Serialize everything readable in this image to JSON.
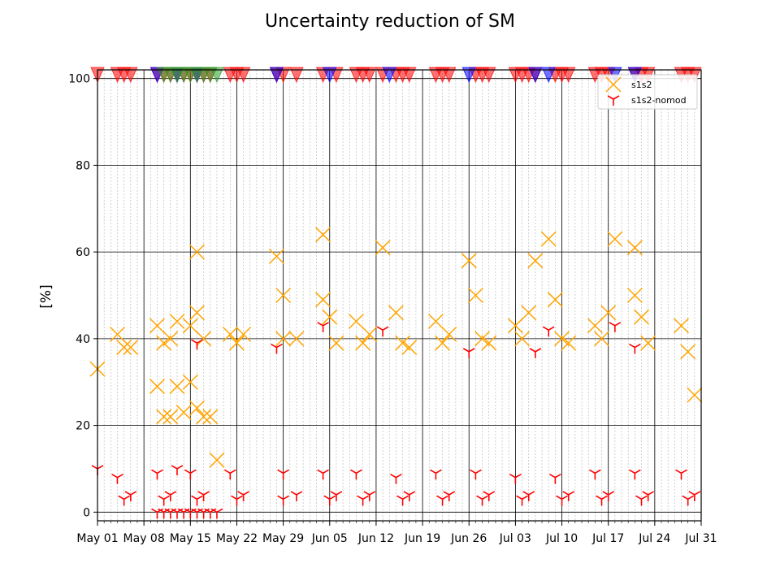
{
  "chart_data": {
    "type": "scatter",
    "title": "Uncertainty reduction of SM",
    "ylabel": "[%]",
    "xlabel": "",
    "x_range": [
      "2017-05-01",
      "2017-07-31"
    ],
    "ylim": [
      -2,
      102
    ],
    "yticks": [
      0,
      20,
      40,
      60,
      80,
      100
    ],
    "xticks": [
      {
        "date": "2017-05-01",
        "label": "May 01"
      },
      {
        "date": "2017-05-08",
        "label": "May 08"
      },
      {
        "date": "2017-05-15",
        "label": "May 15"
      },
      {
        "date": "2017-05-22",
        "label": "May 22"
      },
      {
        "date": "2017-05-29",
        "label": "May 29"
      },
      {
        "date": "2017-06-05",
        "label": "Jun 05"
      },
      {
        "date": "2017-06-12",
        "label": "Jun 12"
      },
      {
        "date": "2017-06-19",
        "label": "Jun 19"
      },
      {
        "date": "2017-06-26",
        "label": "Jun 26"
      },
      {
        "date": "2017-07-03",
        "label": "Jul 03"
      },
      {
        "date": "2017-07-10",
        "label": "Jul 10"
      },
      {
        "date": "2017-07-17",
        "label": "Jul 17"
      },
      {
        "date": "2017-07-24",
        "label": "Jul 24"
      },
      {
        "date": "2017-07-31",
        "label": "Jul 31"
      }
    ],
    "grid": true,
    "minor_grid": "daily, dashed",
    "legend_position": "top-right",
    "series": [
      {
        "name": "s1s2",
        "marker": "x",
        "color": "#ffa500",
        "points": [
          [
            "2017-05-01",
            33
          ],
          [
            "2017-05-04",
            41
          ],
          [
            "2017-05-05",
            38
          ],
          [
            "2017-05-06",
            38
          ],
          [
            "2017-05-10",
            43
          ],
          [
            "2017-05-10",
            29
          ],
          [
            "2017-05-11",
            22
          ],
          [
            "2017-05-11",
            39
          ],
          [
            "2017-05-12",
            22
          ],
          [
            "2017-05-12",
            40
          ],
          [
            "2017-05-13",
            29
          ],
          [
            "2017-05-13",
            44
          ],
          [
            "2017-05-14",
            23
          ],
          [
            "2017-05-15",
            43
          ],
          [
            "2017-05-15",
            30
          ],
          [
            "2017-05-16",
            60
          ],
          [
            "2017-05-16",
            46
          ],
          [
            "2017-05-16",
            24
          ],
          [
            "2017-05-17",
            22
          ],
          [
            "2017-05-17",
            40
          ],
          [
            "2017-05-18",
            22
          ],
          [
            "2017-05-19",
            12
          ],
          [
            "2017-05-21",
            41
          ],
          [
            "2017-05-22",
            39
          ],
          [
            "2017-05-23",
            41
          ],
          [
            "2017-05-28",
            59
          ],
          [
            "2017-05-29",
            50
          ],
          [
            "2017-05-29",
            40
          ],
          [
            "2017-05-31",
            40
          ],
          [
            "2017-06-04",
            64
          ],
          [
            "2017-06-04",
            49
          ],
          [
            "2017-06-05",
            45
          ],
          [
            "2017-06-06",
            39
          ],
          [
            "2017-06-09",
            44
          ],
          [
            "2017-06-10",
            39
          ],
          [
            "2017-06-11",
            41
          ],
          [
            "2017-06-13",
            61
          ],
          [
            "2017-06-15",
            46
          ],
          [
            "2017-06-16",
            39
          ],
          [
            "2017-06-17",
            38
          ],
          [
            "2017-06-21",
            44
          ],
          [
            "2017-06-22",
            39
          ],
          [
            "2017-06-23",
            41
          ],
          [
            "2017-06-26",
            58
          ],
          [
            "2017-06-27",
            50
          ],
          [
            "2017-06-28",
            40
          ],
          [
            "2017-06-29",
            39
          ],
          [
            "2017-07-03",
            43
          ],
          [
            "2017-07-04",
            40
          ],
          [
            "2017-07-05",
            46
          ],
          [
            "2017-07-06",
            58
          ],
          [
            "2017-07-08",
            63
          ],
          [
            "2017-07-09",
            49
          ],
          [
            "2017-07-10",
            40
          ],
          [
            "2017-07-11",
            39
          ],
          [
            "2017-07-15",
            43
          ],
          [
            "2017-07-16",
            40
          ],
          [
            "2017-07-17",
            46
          ],
          [
            "2017-07-18",
            63
          ],
          [
            "2017-07-21",
            61
          ],
          [
            "2017-07-21",
            50
          ],
          [
            "2017-07-22",
            45
          ],
          [
            "2017-07-23",
            39
          ],
          [
            "2017-07-28",
            43
          ],
          [
            "2017-07-29",
            37
          ],
          [
            "2017-07-30",
            27
          ]
        ]
      },
      {
        "name": "s1s2-nomod",
        "marker": "tri_down",
        "color": "#ff0000",
        "points": [
          [
            "2017-05-01",
            10
          ],
          [
            "2017-05-04",
            8
          ],
          [
            "2017-05-05",
            3
          ],
          [
            "2017-05-06",
            4
          ],
          [
            "2017-05-10",
            9
          ],
          [
            "2017-05-10",
            0
          ],
          [
            "2017-05-11",
            3
          ],
          [
            "2017-05-11",
            0
          ],
          [
            "2017-05-12",
            4
          ],
          [
            "2017-05-12",
            0
          ],
          [
            "2017-05-13",
            10
          ],
          [
            "2017-05-13",
            0
          ],
          [
            "2017-05-14",
            0
          ],
          [
            "2017-05-15",
            9
          ],
          [
            "2017-05-15",
            0
          ],
          [
            "2017-05-16",
            39
          ],
          [
            "2017-05-16",
            3
          ],
          [
            "2017-05-16",
            0
          ],
          [
            "2017-05-17",
            4
          ],
          [
            "2017-05-17",
            0
          ],
          [
            "2017-05-18",
            0
          ],
          [
            "2017-05-19",
            0
          ],
          [
            "2017-05-21",
            9
          ],
          [
            "2017-05-22",
            3
          ],
          [
            "2017-05-23",
            4
          ],
          [
            "2017-05-28",
            38
          ],
          [
            "2017-05-29",
            9
          ],
          [
            "2017-05-29",
            3
          ],
          [
            "2017-05-31",
            4
          ],
          [
            "2017-06-04",
            43
          ],
          [
            "2017-06-04",
            9
          ],
          [
            "2017-06-05",
            3
          ],
          [
            "2017-06-06",
            4
          ],
          [
            "2017-06-09",
            9
          ],
          [
            "2017-06-10",
            3
          ],
          [
            "2017-06-11",
            4
          ],
          [
            "2017-06-13",
            42
          ],
          [
            "2017-06-15",
            8
          ],
          [
            "2017-06-16",
            3
          ],
          [
            "2017-06-17",
            4
          ],
          [
            "2017-06-21",
            9
          ],
          [
            "2017-06-22",
            3
          ],
          [
            "2017-06-23",
            4
          ],
          [
            "2017-06-26",
            37
          ],
          [
            "2017-06-27",
            9
          ],
          [
            "2017-06-28",
            3
          ],
          [
            "2017-06-29",
            4
          ],
          [
            "2017-07-03",
            8
          ],
          [
            "2017-07-04",
            3
          ],
          [
            "2017-07-05",
            4
          ],
          [
            "2017-07-06",
            37
          ],
          [
            "2017-07-08",
            42
          ],
          [
            "2017-07-09",
            8
          ],
          [
            "2017-07-10",
            3
          ],
          [
            "2017-07-11",
            4
          ],
          [
            "2017-07-15",
            9
          ],
          [
            "2017-07-16",
            3
          ],
          [
            "2017-07-17",
            4
          ],
          [
            "2017-07-18",
            43
          ],
          [
            "2017-07-21",
            38
          ],
          [
            "2017-07-21",
            9
          ],
          [
            "2017-07-22",
            3
          ],
          [
            "2017-07-23",
            4
          ],
          [
            "2017-07-28",
            9
          ],
          [
            "2017-07-29",
            3
          ],
          [
            "2017-07-30",
            4
          ]
        ]
      }
    ],
    "top_markers": [
      {
        "color": "#ff0000",
        "dates": [
          "2017-05-01",
          "2017-05-04",
          "2017-05-05",
          "2017-05-06",
          "2017-05-10",
          "2017-05-11",
          "2017-05-12",
          "2017-05-13",
          "2017-05-14",
          "2017-05-15",
          "2017-05-16",
          "2017-05-17",
          "2017-05-18",
          "2017-05-21",
          "2017-05-22",
          "2017-05-23",
          "2017-05-28",
          "2017-05-29",
          "2017-05-31",
          "2017-06-04",
          "2017-06-06",
          "2017-06-09",
          "2017-06-10",
          "2017-06-11",
          "2017-06-13",
          "2017-06-15",
          "2017-06-16",
          "2017-06-17",
          "2017-06-21",
          "2017-06-22",
          "2017-06-23",
          "2017-06-27",
          "2017-06-28",
          "2017-06-29",
          "2017-07-03",
          "2017-07-04",
          "2017-07-05",
          "2017-07-06",
          "2017-07-09",
          "2017-07-10",
          "2017-07-11",
          "2017-07-15",
          "2017-07-16",
          "2017-07-17",
          "2017-07-21",
          "2017-07-22",
          "2017-07-23",
          "2017-07-28",
          "2017-07-29",
          "2017-07-30"
        ]
      },
      {
        "color": "#0000ff",
        "dates": [
          "2017-05-10",
          "2017-05-13",
          "2017-05-16",
          "2017-05-28",
          "2017-06-05",
          "2017-06-14",
          "2017-06-26",
          "2017-07-06",
          "2017-07-08",
          "2017-07-18",
          "2017-07-21"
        ]
      },
      {
        "color": "#2ca02c",
        "dates": [
          "2017-05-11",
          "2017-05-12",
          "2017-05-13",
          "2017-05-14",
          "2017-05-15",
          "2017-05-16",
          "2017-05-17",
          "2017-05-18",
          "2017-05-19"
        ]
      }
    ]
  }
}
